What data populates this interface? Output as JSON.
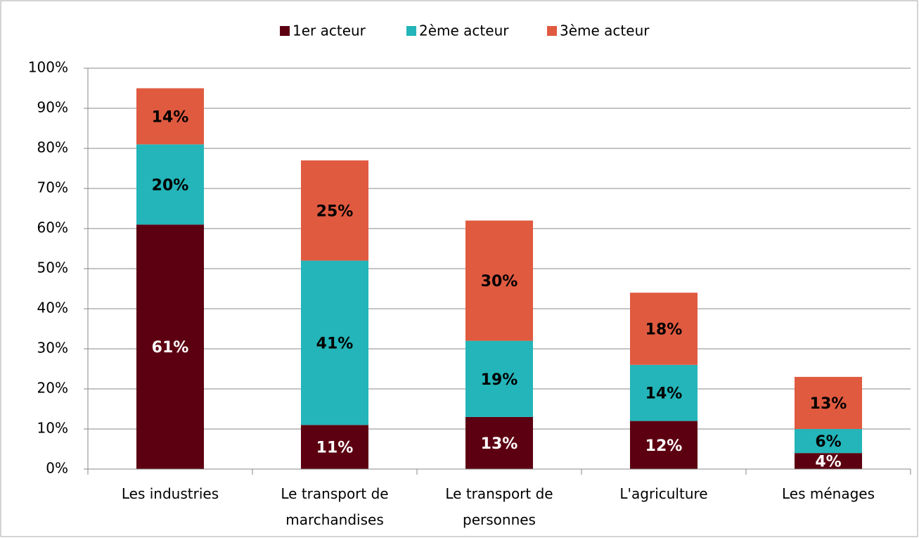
{
  "chart_data": {
    "type": "stacked_bar",
    "categories": [
      "Les industries",
      "Le transport de marchandises",
      "Le transport de personnes",
      "L'agriculture",
      "Les ménages"
    ],
    "series": [
      {
        "name": "1er acteur",
        "color": "#5c0011",
        "label_color": "#ffffff",
        "values": [
          61,
          11,
          13,
          12,
          4
        ],
        "value_labels": [
          "61%",
          "11%",
          "13%",
          "12%",
          "4%"
        ]
      },
      {
        "name": "2ème acteur",
        "color": "#23b5b9",
        "label_color": "#000000",
        "values": [
          20,
          41,
          19,
          14,
          6
        ],
        "value_labels": [
          "20%",
          "41%",
          "19%",
          "14%",
          "6%"
        ]
      },
      {
        "name": "3ème acteur",
        "color": "#e05a40",
        "label_color": "#000000",
        "values": [
          14,
          25,
          30,
          18,
          13
        ],
        "value_labels": [
          "14%",
          "25%",
          "30%",
          "18%",
          "13%"
        ]
      }
    ],
    "ylim": [
      0,
      100
    ],
    "yticks": [
      {
        "value": 0,
        "label": "0%"
      },
      {
        "value": 10,
        "label": "10%"
      },
      {
        "value": 20,
        "label": "20%"
      },
      {
        "value": 30,
        "label": "30%"
      },
      {
        "value": 40,
        "label": "40%"
      },
      {
        "value": 50,
        "label": "50%"
      },
      {
        "value": 60,
        "label": "60%"
      },
      {
        "value": 70,
        "label": "70%"
      },
      {
        "value": 80,
        "label": "80%"
      },
      {
        "value": 90,
        "label": "90%"
      },
      {
        "value": 100,
        "label": "100%"
      }
    ],
    "grid": true,
    "legend": "top"
  }
}
